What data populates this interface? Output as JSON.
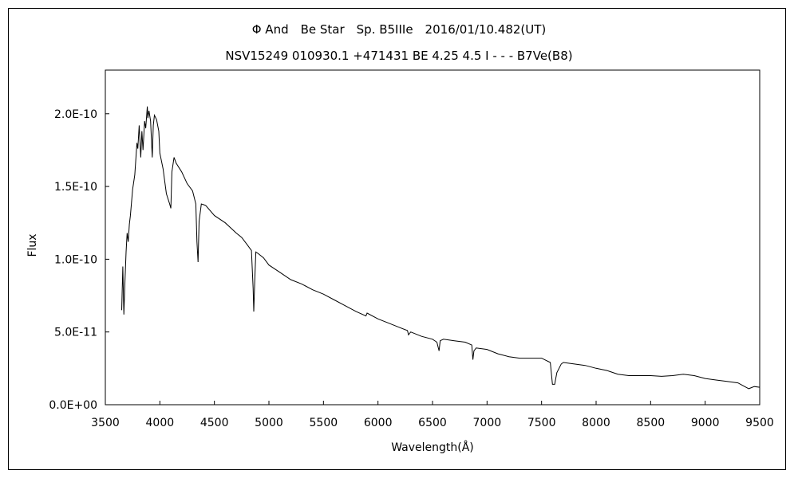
{
  "chart_data": {
    "type": "line",
    "title": "Φ And　Be Star　Sp. B5IIIe　2016/01/10.482(UT)",
    "subtitle": "NSV15249 010930.1 +471431 BE 4.25 4.5 I - - - B7Ve(B8)",
    "xlabel": "Wavelength(Å)",
    "ylabel": "Flux",
    "xlim": [
      3500,
      9500
    ],
    "ylim": [
      0,
      2.3e-10
    ],
    "x_ticks": [
      3500,
      4000,
      4500,
      5000,
      5500,
      6000,
      6500,
      7000,
      7500,
      8000,
      8500,
      9000,
      9500
    ],
    "x_tick_labels": [
      "3500",
      "4000",
      "4500",
      "5000",
      "5500",
      "6000",
      "6500",
      "7000",
      "7500",
      "8000",
      "8500",
      "9000",
      "9500"
    ],
    "y_ticks": [
      0,
      5e-11,
      1e-10,
      1.5e-10,
      2e-10
    ],
    "y_tick_labels": [
      "0.0E+00",
      "5.0E-11",
      "1.0E-10",
      "1.5E-10",
      "2.0E-10"
    ],
    "grid": false,
    "line_color": "#000000",
    "series": [
      {
        "x": [
          3650,
          3660,
          3670,
          3680,
          3690,
          3700,
          3710,
          3720,
          3730,
          3750,
          3770,
          3790,
          3798,
          3810,
          3825,
          3835,
          3845,
          3860,
          3870,
          3885,
          3890,
          3900,
          3915,
          3930,
          3940,
          3950,
          3970,
          3990,
          4000,
          4030,
          4060,
          4090,
          4101,
          4110,
          4130,
          4150,
          4200,
          4250,
          4300,
          4330,
          4340,
          4350,
          4360,
          4380,
          4420,
          4500,
          4600,
          4700,
          4750,
          4800,
          4840,
          4855,
          4861,
          4870,
          4880,
          4900,
          4950,
          5000,
          5100,
          5200,
          5300,
          5400,
          5500,
          5600,
          5700,
          5800,
          5890,
          5900,
          6000,
          6100,
          6200,
          6270,
          6280,
          6300,
          6400,
          6500,
          6540,
          6560,
          6570,
          6600,
          6700,
          6800,
          6860,
          6870,
          6880,
          6900,
          7000,
          7100,
          7200,
          7300,
          7400,
          7500,
          7580,
          7600,
          7620,
          7640,
          7680,
          7700,
          7800,
          7900,
          8000,
          8100,
          8200,
          8300,
          8400,
          8500,
          8600,
          8700,
          8800,
          8900,
          9000,
          9100,
          9200,
          9300,
          9350,
          9400,
          9450,
          9500
        ],
        "y": [
          6.5e-11,
          9.5e-11,
          6.2e-11,
          8.5e-11,
          1.05e-10,
          1.18e-10,
          1.12e-10,
          1.24e-10,
          1.3e-10,
          1.48e-10,
          1.58e-10,
          1.8e-10,
          1.76e-10,
          1.92e-10,
          1.7e-10,
          1.88e-10,
          1.75e-10,
          1.95e-10,
          1.9e-10,
          2.05e-10,
          1.97e-10,
          2.02e-10,
          1.95e-10,
          1.7e-10,
          1.92e-10,
          1.99e-10,
          1.96e-10,
          1.88e-10,
          1.73e-10,
          1.62e-10,
          1.45e-10,
          1.38e-10,
          1.35e-10,
          1.6e-10,
          1.7e-10,
          1.66e-10,
          1.6e-10,
          1.52e-10,
          1.47e-10,
          1.38e-10,
          1.12e-10,
          9.8e-11,
          1.26e-10,
          1.38e-10,
          1.37e-10,
          1.3e-10,
          1.25e-10,
          1.18e-10,
          1.15e-10,
          1.1e-10,
          1.06e-10,
          8e-11,
          6.4e-11,
          8.5e-11,
          1.05e-10,
          1.04e-10,
          1.01e-10,
          9.6e-11,
          9.1e-11,
          8.6e-11,
          8.3e-11,
          7.9e-11,
          7.6e-11,
          7.2e-11,
          6.8e-11,
          6.4e-11,
          6.1e-11,
          6.3e-11,
          5.9e-11,
          5.6e-11,
          5.3e-11,
          5.1e-11,
          4.8e-11,
          5e-11,
          4.7e-11,
          4.5e-11,
          4.3e-11,
          3.7e-11,
          4.4e-11,
          4.5e-11,
          4.4e-11,
          4.3e-11,
          4.1e-11,
          3.1e-11,
          3.7e-11,
          3.9e-11,
          3.8e-11,
          3.5e-11,
          3.3e-11,
          3.2e-11,
          3.2e-11,
          3.2e-11,
          2.9e-11,
          1.4e-11,
          1.4e-11,
          2.2e-11,
          2.8e-11,
          2.9e-11,
          2.8e-11,
          2.7e-11,
          2.5e-11,
          2.35e-11,
          2.1e-11,
          2e-11,
          2e-11,
          2e-11,
          1.95e-11,
          2e-11,
          2.1e-11,
          2e-11,
          1.8e-11,
          1.7e-11,
          1.6e-11,
          1.5e-11,
          1.3e-11,
          1.1e-11,
          1.25e-11,
          1.2e-11
        ]
      }
    ]
  }
}
